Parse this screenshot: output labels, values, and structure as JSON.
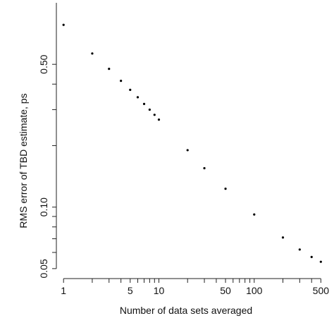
{
  "chart_data": {
    "type": "scatter",
    "title": "",
    "xlabel": "Number of data sets averaged",
    "ylabel": "RMS error of TBD estimate, ps",
    "xscale": "log",
    "yscale": "log",
    "xlim": [
      0.9,
      560
    ],
    "ylim": [
      0.048,
      1.0
    ],
    "grid": false,
    "x_ticks": [
      {
        "value": 1,
        "label": "1"
      },
      {
        "value": 5,
        "label": "5"
      },
      {
        "value": 10,
        "label": "10"
      },
      {
        "value": 50,
        "label": "50"
      },
      {
        "value": 100,
        "label": "100"
      },
      {
        "value": 500,
        "label": "500"
      }
    ],
    "x_minor_ticks": [
      2,
      3,
      4,
      6,
      7,
      8,
      9,
      20,
      30,
      40,
      60,
      70,
      80,
      90,
      200,
      300,
      400
    ],
    "y_ticks": [
      {
        "value": 0.05,
        "label": "0.05"
      },
      {
        "value": 0.1,
        "label": "0.10"
      },
      {
        "value": 0.5,
        "label": "0.50"
      }
    ],
    "y_minor_ticks": [
      0.06,
      0.07,
      0.08,
      0.09,
      0.2,
      0.3,
      0.4
    ],
    "series": [
      {
        "points": [
          [
            1,
            0.78
          ],
          [
            2,
            0.565
          ],
          [
            3,
            0.475
          ],
          [
            4,
            0.415
          ],
          [
            5,
            0.375
          ],
          [
            6,
            0.345
          ],
          [
            7,
            0.32
          ],
          [
            8,
            0.3
          ],
          [
            9,
            0.283
          ],
          [
            10,
            0.268
          ],
          [
            20,
            0.19
          ],
          [
            30,
            0.155
          ],
          [
            50,
            0.123
          ],
          [
            100,
            0.092
          ],
          [
            200,
            0.071
          ],
          [
            300,
            0.062
          ],
          [
            400,
            0.057
          ],
          [
            500,
            0.054
          ]
        ]
      }
    ]
  }
}
